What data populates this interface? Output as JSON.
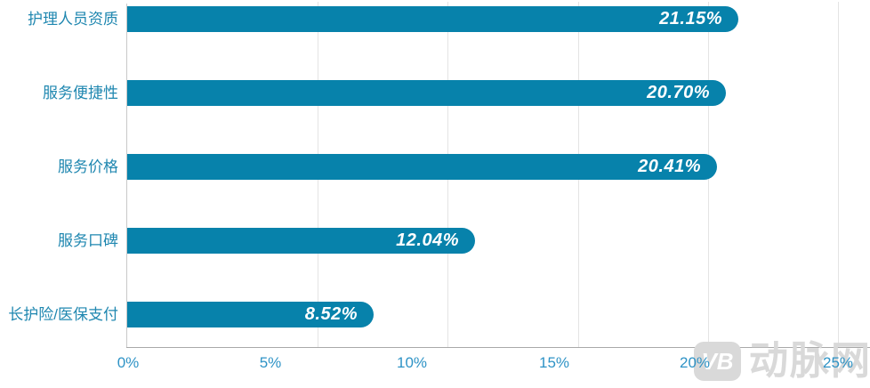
{
  "chart_data": {
    "type": "bar",
    "orientation": "horizontal",
    "title": "",
    "xlabel": "",
    "ylabel": "",
    "categories": [
      "护理人员资质",
      "服务便捷性",
      "服务价格",
      "服务口碑",
      "长护险/医保支付"
    ],
    "values": [
      21.15,
      20.7,
      20.41,
      12.04,
      8.52
    ],
    "value_labels": [
      "21.15%",
      "20.70%",
      "20.41%",
      "12.04%",
      "8.52%"
    ],
    "x_ticks": [
      "0%",
      "5%",
      "10%",
      "15%",
      "20%",
      "25%"
    ],
    "xlim": [
      0,
      25
    ],
    "grid": true,
    "legend": "none",
    "colors": {
      "bar": "#0782ab",
      "category_label": "#1f87b0",
      "tick_label": "#2e93c6",
      "value_label": "#ffffff",
      "gridline": "#e4e4e4",
      "axis": "#a9a9a9",
      "watermark": "#d9d9d9"
    }
  },
  "watermark": {
    "logo": "VB",
    "text": "动脉网"
  }
}
